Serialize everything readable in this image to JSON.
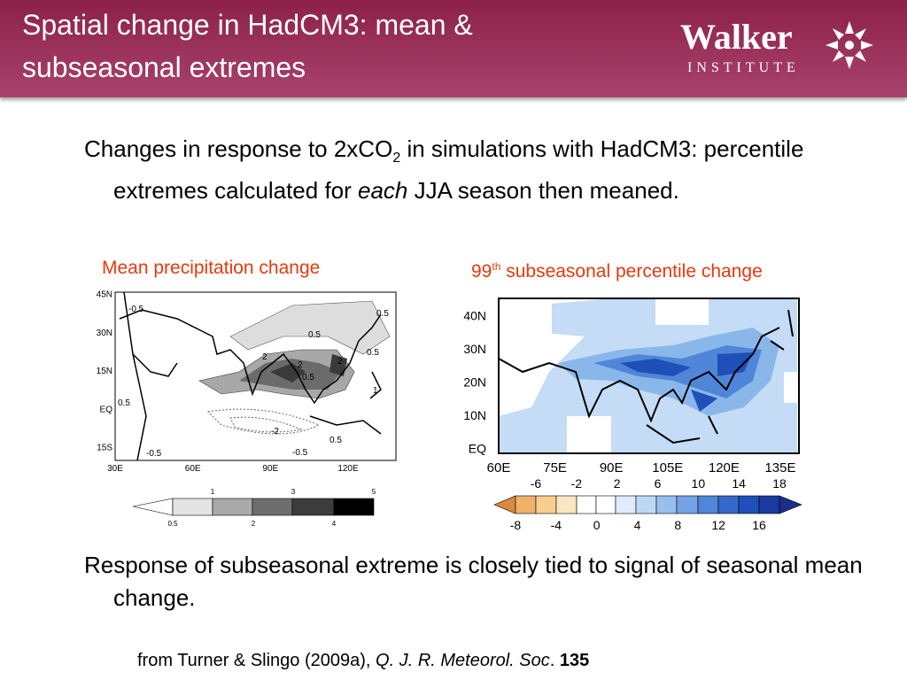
{
  "header": {
    "title_lines": [
      "Spatial change in HadCM3: mean &",
      "subseasonal extremes"
    ],
    "logo_name": "Walker",
    "logo_sub": "INSTITUTE"
  },
  "bullets": [
    {
      "a": "Changes in response to 2xCO",
      "sub": "2",
      "b": " in simulations with HadCM3: percentile extremes calculated for ",
      "em": "each",
      "c": " JJA season then meaned."
    },
    {
      "a": "Response of subseasonal extreme is closely tied to signal of seasonal mean change."
    }
  ],
  "left_map": {
    "title": "Mean precipitation change",
    "y_labels": [
      "45N",
      "30N",
      "15N",
      "EQ",
      "15S"
    ],
    "x_labels": [
      "30E",
      "60E",
      "90E",
      "120E"
    ],
    "contour_labels": [
      "-0.5",
      "0.5",
      "0.5",
      "0.5",
      "2",
      "2",
      "2",
      "-2",
      "0.5",
      "0.5",
      "-0.5",
      "-0.5",
      "1",
      "0.5"
    ],
    "colorbar_top": [
      "1",
      "3",
      "5"
    ],
    "colorbar_bottom": [
      "0.5",
      "2",
      "4"
    ]
  },
  "right_map": {
    "title": "99",
    "title_sup": "th",
    "title_rest": " subseasonal percentile change",
    "y_labels": [
      "40N",
      "30N",
      "20N",
      "10N",
      "EQ"
    ],
    "x_labels": [
      "60E",
      "75E",
      "90E",
      "105E",
      "120E",
      "135E"
    ],
    "colorbar_top": [
      "-6",
      "-2",
      "2",
      "6",
      "10",
      "14",
      "18"
    ],
    "colorbar_bottom": [
      "-8",
      "-4",
      "0",
      "4",
      "8",
      "12",
      "16"
    ]
  },
  "citation": {
    "a": "from Turner & Slingo (2009a),",
    "journal": "Q. J. R. Meteorol. Soc",
    "dot": ".",
    "volume": "135"
  }
}
